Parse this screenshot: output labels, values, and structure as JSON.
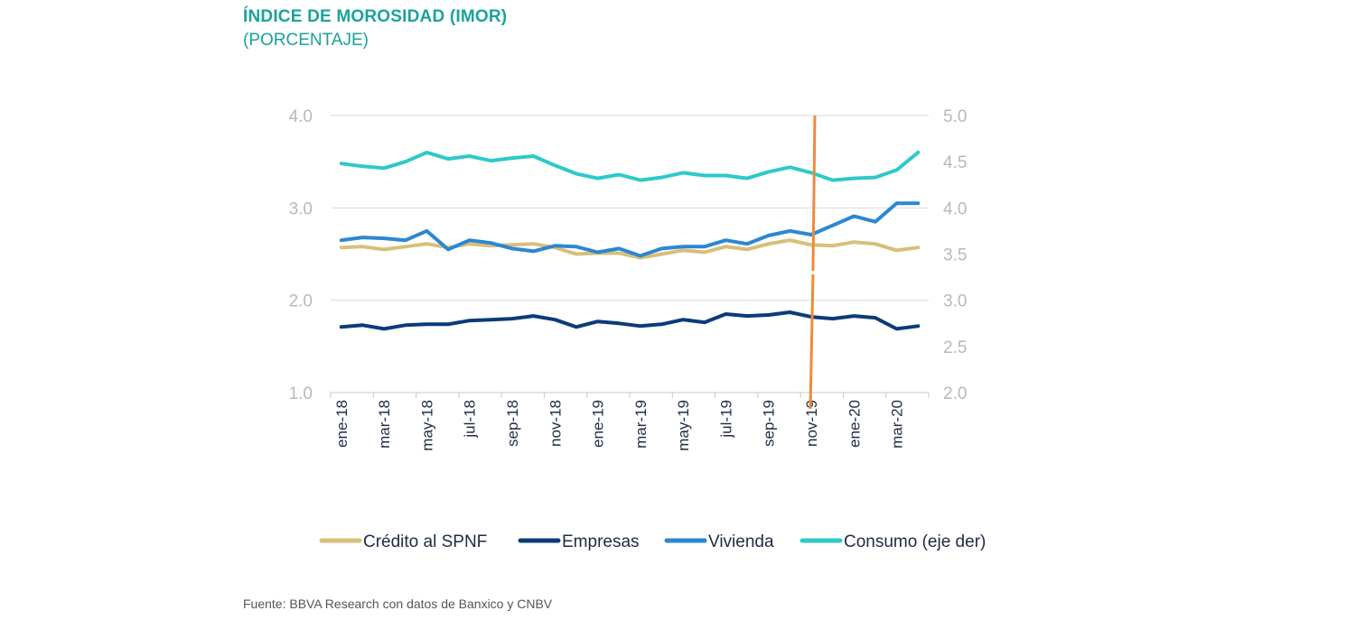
{
  "title": "ÍNDICE DE MOROSIDAD (IMOR)",
  "subtitle": "(PORCENTAJE)",
  "source": "Fuente: BBVA Research con datos de Banxico y CNBV",
  "chart_data": {
    "type": "line",
    "categories": [
      "ene-18",
      "feb-18",
      "mar-18",
      "abr-18",
      "may-18",
      "jun-18",
      "jul-18",
      "ago-18",
      "sep-18",
      "oct-18",
      "nov-18",
      "dic-18",
      "ene-19",
      "feb-19",
      "mar-19",
      "abr-19",
      "may-19",
      "jun-19",
      "jul-19",
      "ago-19",
      "sep-19",
      "oct-19",
      "nov-19",
      "dic-19",
      "ene-20",
      "feb-20",
      "mar-20",
      "abr-20"
    ],
    "x_tick_labels": [
      "ene-18",
      "mar-18",
      "may-18",
      "jul-18",
      "sep-18",
      "nov-18",
      "ene-19",
      "mar-19",
      "may-19",
      "jul-19",
      "sep-19",
      "nov-19",
      "ene-20",
      "mar-20"
    ],
    "y_left": {
      "range": [
        1.0,
        4.0
      ],
      "ticks": [
        "1.0",
        "2.0",
        "3.0",
        "4.0"
      ]
    },
    "y_right": {
      "range": [
        2.0,
        5.0
      ],
      "ticks": [
        "2.0",
        "2.5",
        "3.0",
        "3.5",
        "4.0",
        "4.5",
        "5.0"
      ]
    },
    "grid": true,
    "legend_position": "bottom",
    "series": [
      {
        "name": "Crédito al SPNF",
        "axis": "left",
        "color": "#d7bf7a",
        "values": [
          2.57,
          2.58,
          2.55,
          2.58,
          2.61,
          2.57,
          2.61,
          2.59,
          2.6,
          2.61,
          2.57,
          2.5,
          2.51,
          2.51,
          2.46,
          2.5,
          2.54,
          2.52,
          2.58,
          2.55,
          2.61,
          2.65,
          2.6,
          2.59,
          2.63,
          2.61,
          2.54,
          2.57
        ]
      },
      {
        "name": "Empresas",
        "axis": "left",
        "color": "#0b3b78",
        "values": [
          1.71,
          1.73,
          1.69,
          1.73,
          1.74,
          1.74,
          1.78,
          1.79,
          1.8,
          1.83,
          1.79,
          1.71,
          1.77,
          1.75,
          1.72,
          1.74,
          1.79,
          1.76,
          1.85,
          1.83,
          1.84,
          1.87,
          1.82,
          1.8,
          1.83,
          1.81,
          1.69,
          1.72
        ]
      },
      {
        "name": "Vivienda",
        "axis": "left",
        "color": "#2b87d1",
        "values": [
          2.65,
          2.68,
          2.67,
          2.65,
          2.75,
          2.55,
          2.65,
          2.62,
          2.56,
          2.53,
          2.59,
          2.58,
          2.52,
          2.56,
          2.48,
          2.56,
          2.58,
          2.58,
          2.65,
          2.61,
          2.7,
          2.75,
          2.71,
          2.81,
          2.91,
          2.85,
          3.05,
          3.05
        ]
      },
      {
        "name": "Consumo (eje der)",
        "axis": "right",
        "color": "#2ec9c9",
        "values": [
          4.48,
          4.45,
          4.43,
          4.5,
          4.6,
          4.53,
          4.56,
          4.51,
          4.54,
          4.56,
          4.46,
          4.37,
          4.32,
          4.36,
          4.3,
          4.33,
          4.38,
          4.35,
          4.35,
          4.32,
          4.39,
          4.44,
          4.38,
          4.3,
          4.32,
          4.33,
          4.41,
          4.6
        ]
      }
    ],
    "marker": {
      "category": "nov-19",
      "color": "#ee8a3a"
    }
  }
}
